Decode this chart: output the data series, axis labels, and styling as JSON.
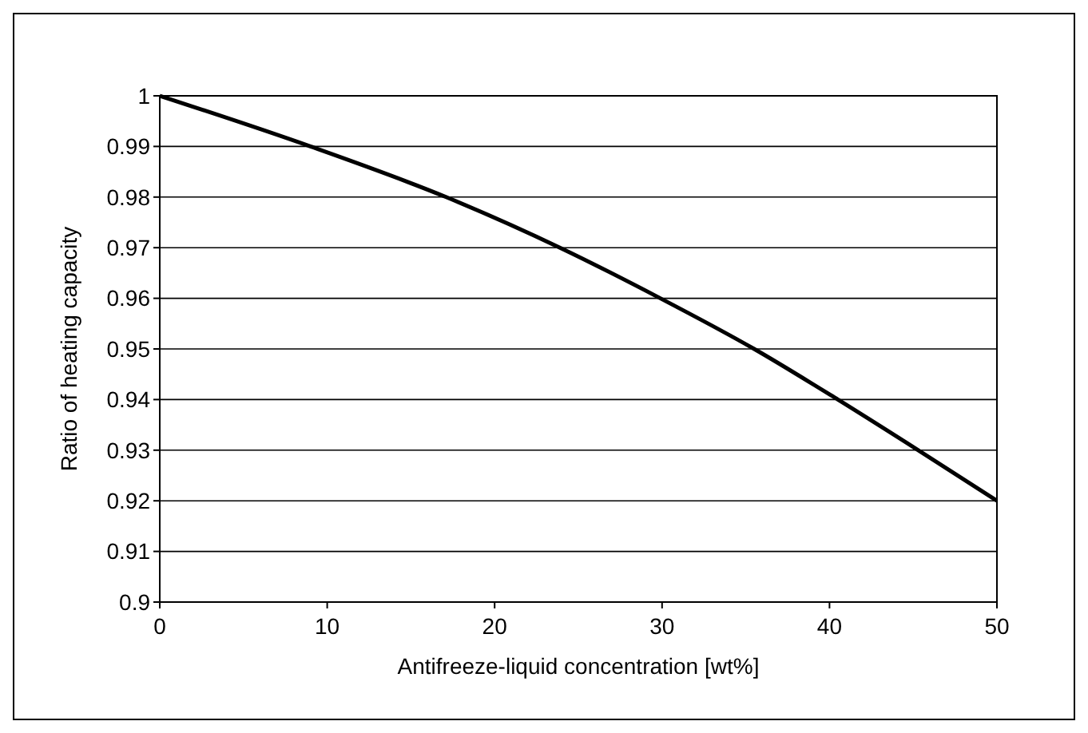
{
  "chart_data": {
    "type": "line",
    "xlabel": "Antifreeze-liquid concentration [wt%]",
    "ylabel": "Ratio of heating capacity",
    "x": [
      0,
      9,
      17.1,
      23.9,
      29.9,
      35.5,
      40.5,
      45.3,
      50
    ],
    "series": [
      {
        "color": "#000000",
        "values": [
          1,
          0.99,
          0.98,
          0.97,
          0.96,
          0.95,
          0.94,
          0.93,
          0.92
        ]
      }
    ],
    "xlim": [
      0,
      50
    ],
    "xticks": [
      0,
      10,
      20,
      30,
      40,
      50
    ],
    "ylim": [
      0.9,
      1
    ],
    "yticks": [
      0.9,
      0.91,
      0.92,
      0.93,
      0.94,
      0.95,
      0.96,
      0.97,
      0.98,
      0.99,
      1
    ],
    "grid": "y",
    "marker": "none",
    "line_style": "solid"
  }
}
